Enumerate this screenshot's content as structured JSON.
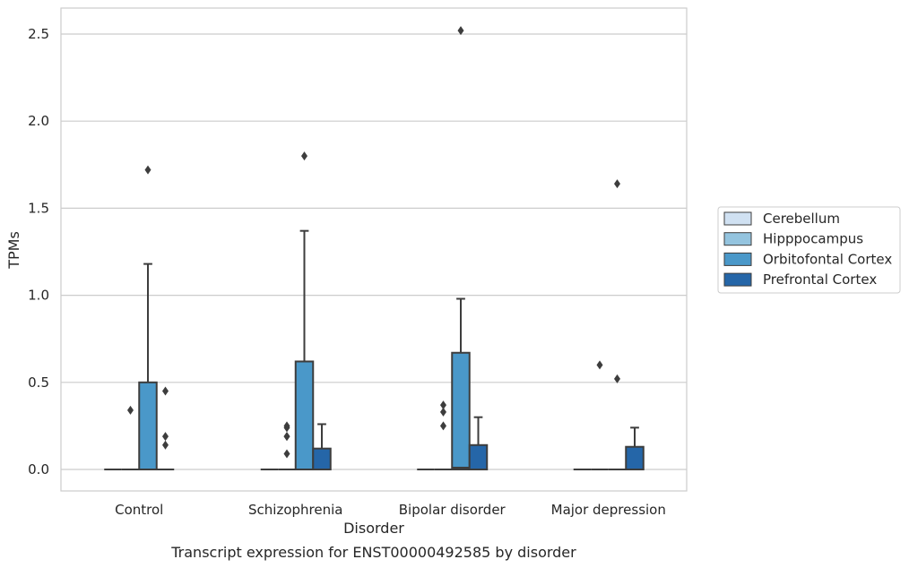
{
  "chart_data": {
    "type": "box",
    "title": "",
    "caption": "Transcript expression for ENST00000492585 by disorder",
    "xlabel": "Disorder",
    "ylabel": "TPMs",
    "ylim": [
      -0.12,
      2.65
    ],
    "yticks": [
      "0.0",
      "0.5",
      "1.0",
      "1.5",
      "2.0",
      "2.5"
    ],
    "ytick_values": [
      0.0,
      0.5,
      1.0,
      1.5,
      2.0,
      2.5
    ],
    "grid": "horizontal",
    "legend_position": "right",
    "categories": [
      "Control",
      "Schizophrenia",
      "Bipolar disorder",
      "Major depression"
    ],
    "series": [
      {
        "name": "Cerebellum",
        "color": "#d0e1f2",
        "boxes": [
          {
            "q1": 0,
            "median": 0,
            "q3": 0,
            "whisker_low": 0,
            "whisker_high": 0,
            "outliers": []
          },
          {
            "q1": 0,
            "median": 0,
            "q3": 0,
            "whisker_low": 0,
            "whisker_high": 0,
            "outliers": []
          },
          {
            "q1": 0,
            "median": 0,
            "q3": 0,
            "whisker_low": 0,
            "whisker_high": 0,
            "outliers": []
          },
          {
            "q1": 0,
            "median": 0,
            "q3": 0,
            "whisker_low": 0,
            "whisker_high": 0,
            "outliers": []
          }
        ]
      },
      {
        "name": "Hipppocampus",
        "color": "#94c4df",
        "boxes": [
          {
            "q1": 0,
            "median": 0,
            "q3": 0,
            "whisker_low": 0,
            "whisker_high": 0,
            "outliers": [
              0.34
            ]
          },
          {
            "q1": 0,
            "median": 0,
            "q3": 0,
            "whisker_low": 0,
            "whisker_high": 0,
            "outliers": [
              0.09,
              0.19,
              0.19,
              0.24,
              0.25
            ]
          },
          {
            "q1": 0,
            "median": 0,
            "q3": 0,
            "whisker_low": 0,
            "whisker_high": 0,
            "outliers": [
              0.25,
              0.33,
              0.37
            ]
          },
          {
            "q1": 0,
            "median": 0,
            "q3": 0,
            "whisker_low": 0,
            "whisker_high": 0,
            "outliers": [
              0.6
            ]
          }
        ]
      },
      {
        "name": "Orbitofontal Cortex",
        "color": "#4a98c9",
        "boxes": [
          {
            "q1": 0,
            "median": 0,
            "q3": 0.5,
            "whisker_low": 0,
            "whisker_high": 1.18,
            "outliers": [
              1.72
            ]
          },
          {
            "q1": 0,
            "median": 0,
            "q3": 0.62,
            "whisker_low": 0,
            "whisker_high": 1.37,
            "outliers": [
              1.8
            ]
          },
          {
            "q1": 0,
            "median": 0.01,
            "q3": 0.67,
            "whisker_low": 0,
            "whisker_high": 0.98,
            "outliers": [
              2.52
            ]
          },
          {
            "q1": 0,
            "median": 0,
            "q3": 0,
            "whisker_low": 0,
            "whisker_high": 0,
            "outliers": [
              0.52,
              1.64
            ]
          }
        ]
      },
      {
        "name": "Prefrontal Cortex",
        "color": "#2566a8",
        "boxes": [
          {
            "q1": 0,
            "median": 0,
            "q3": 0,
            "whisker_low": 0,
            "whisker_high": 0,
            "outliers": [
              0.14,
              0.19,
              0.45
            ]
          },
          {
            "q1": 0,
            "median": 0,
            "q3": 0.12,
            "whisker_low": 0,
            "whisker_high": 0.26,
            "outliers": []
          },
          {
            "q1": 0,
            "median": 0,
            "q3": 0.14,
            "whisker_low": 0,
            "whisker_high": 0.3,
            "outliers": []
          },
          {
            "q1": 0,
            "median": 0,
            "q3": 0.13,
            "whisker_low": 0,
            "whisker_high": 0.24,
            "outliers": []
          }
        ]
      }
    ]
  }
}
